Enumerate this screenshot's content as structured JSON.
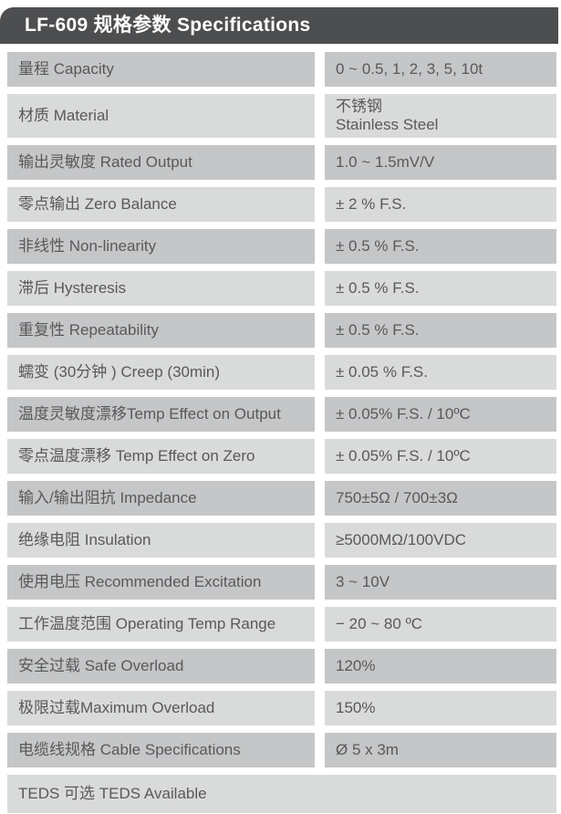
{
  "header": {
    "title": "LF-609 规格参数 Specifications"
  },
  "colors": {
    "header_bg": "#4d4e50",
    "header_text": "#ffffff",
    "row_dark": "#c5c6c7",
    "row_light": "#d9dada",
    "text": "#58595b",
    "page_bg": "#ffffff"
  },
  "table": {
    "rows": [
      {
        "label": "量程 Capacity",
        "value": "0 ~ 0.5, 1, 2, 3, 5, 10t"
      },
      {
        "label": "材质 Material",
        "value": "不锈钢\nStainless Steel"
      },
      {
        "label": "输出灵敏度 Rated Output",
        "value": "1.0 ~ 1.5mV/V"
      },
      {
        "label": "零点输出 Zero Balance",
        "value": "± 2 % F.S."
      },
      {
        "label": "非线性 Non-linearity",
        "value": "± 0.5 % F.S."
      },
      {
        "label": "滞后 Hysteresis",
        "value": "± 0.5 % F.S."
      },
      {
        "label": "重复性 Repeatability",
        "value": "± 0.5 % F.S."
      },
      {
        "label": "蠕变 (30分钟 ) Creep (30min)",
        "value": "± 0.05 % F.S."
      },
      {
        "label": "温度灵敏度漂移Temp Effect on Output",
        "value": "± 0.05% F.S. / 10ºC"
      },
      {
        "label": "零点温度漂移 Temp Effect on Zero",
        "value": "± 0.05% F.S. / 10ºC"
      },
      {
        "label": "输入/输出阻抗 Impedance",
        "value": "750±5Ω / 700±3Ω"
      },
      {
        "label": "绝缘电阻 Insulation",
        "value": "≥5000MΩ/100VDC"
      },
      {
        "label": "使用电压 Recommended Excitation",
        "value": "3 ~ 10V"
      },
      {
        "label": "工作温度范围 Operating Temp Range",
        "value": "− 20 ~ 80 ºC"
      },
      {
        "label": "安全过载 Safe Overload",
        "value": "120%"
      },
      {
        "label": "极限过载Maximum Overload",
        "value": "150%"
      },
      {
        "label": "电缆线规格 Cable Specifications",
        "value": "Ø 5 x 3m"
      }
    ],
    "footer_label": "TEDS 可选 TEDS Available"
  }
}
